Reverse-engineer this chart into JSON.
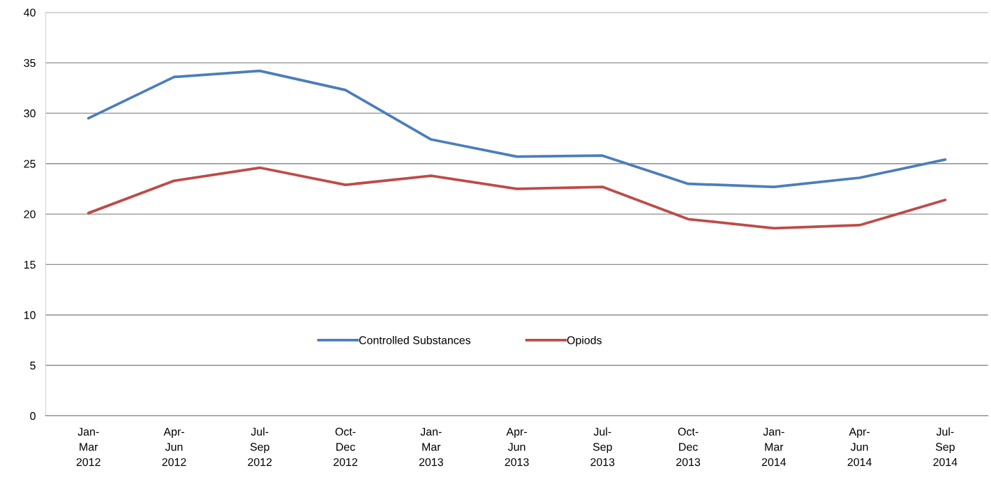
{
  "chart_data": {
    "type": "line",
    "categories": [
      "Jan-\nMar\n2012",
      "Apr-\nJun\n2012",
      "Jul-\nSep\n2012",
      "Oct-\nDec\n2012",
      "Jan-\nMar\n2013",
      "Apr-\nJun\n2013",
      "Jul-\nSep\n2013",
      "Oct-\nDec\n2013",
      "Jan-\nMar\n2014",
      "Apr-\nJun\n2014",
      "Jul-\nSep\n2014"
    ],
    "series": [
      {
        "name": "Controlled Substances",
        "color": "#4a7ebb",
        "values": [
          29.5,
          33.6,
          34.2,
          32.3,
          27.4,
          25.7,
          25.8,
          23.0,
          22.7,
          23.6,
          25.4
        ]
      },
      {
        "name": "Opiods",
        "color": "#be4b48",
        "values": [
          20.1,
          23.3,
          24.6,
          22.9,
          23.8,
          22.5,
          22.7,
          19.5,
          18.6,
          18.9,
          21.4
        ]
      }
    ],
    "ylim": [
      0,
      40
    ],
    "yticks": [
      0,
      5,
      10,
      15,
      20,
      25,
      30,
      35,
      40
    ],
    "grid": "y",
    "legend": "bottom",
    "marker": "none",
    "line_style": "solid"
  }
}
